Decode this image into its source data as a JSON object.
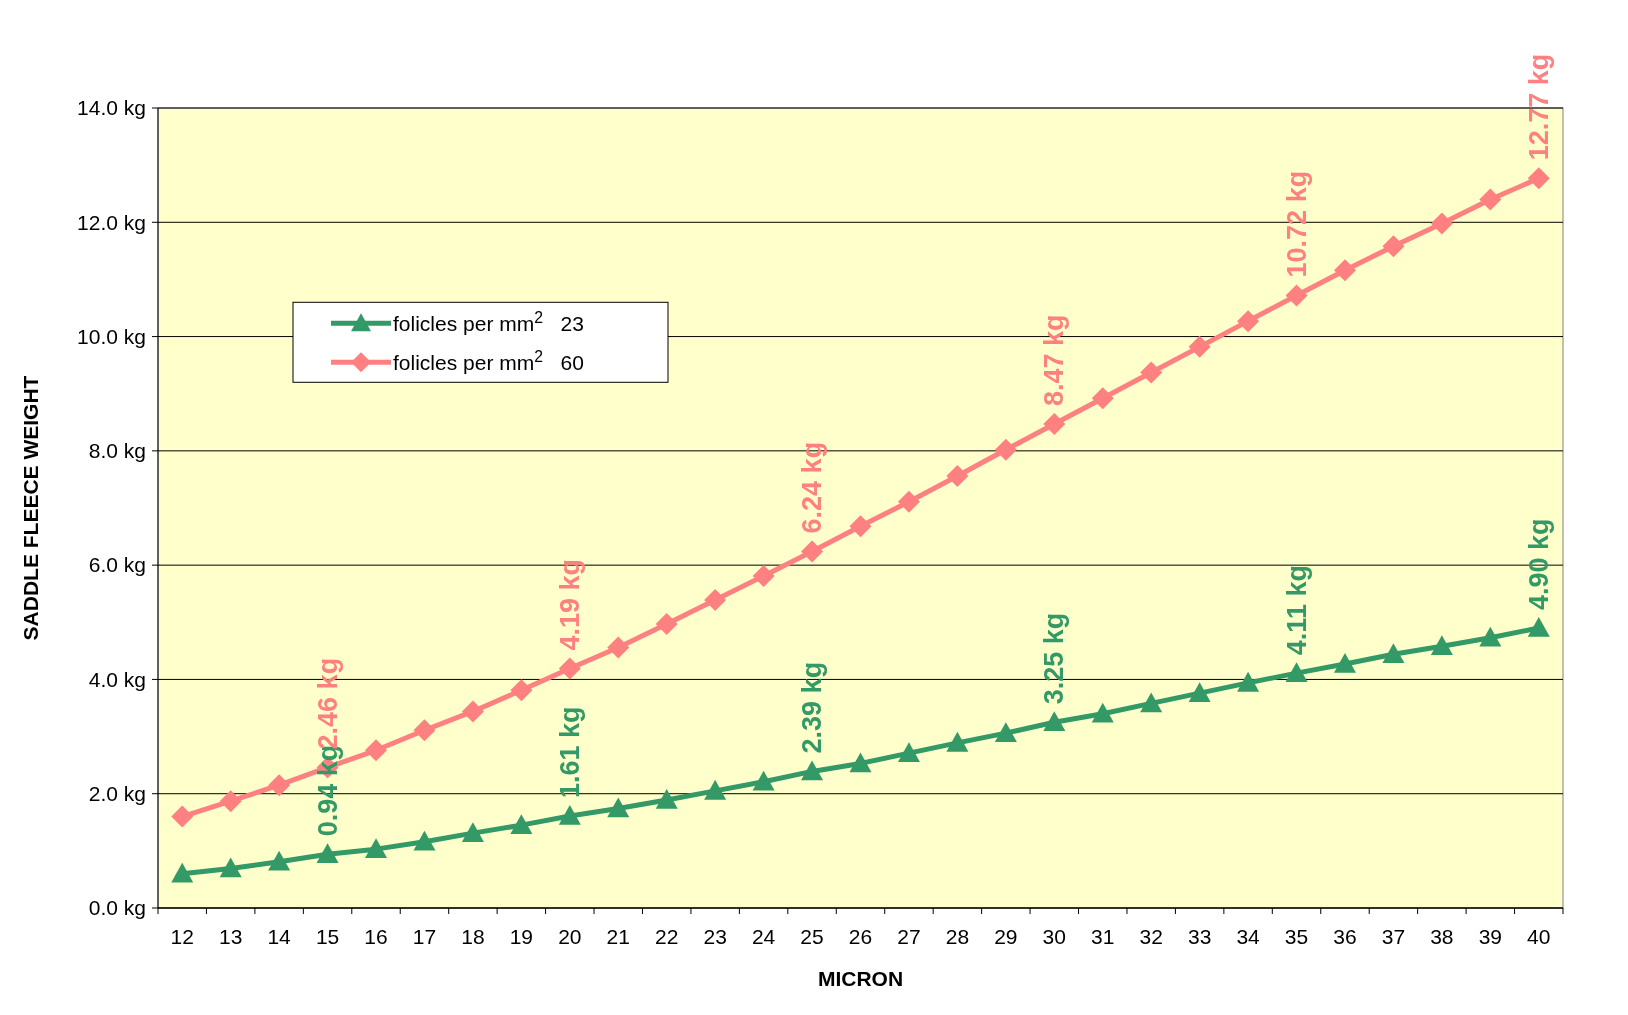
{
  "chart_data": {
    "type": "line",
    "xlabel": "MICRON",
    "ylabel": "SADDLE FLEECE WEIGHT",
    "categories": [
      "12",
      "13",
      "14",
      "15",
      "16",
      "17",
      "18",
      "19",
      "20",
      "21",
      "22",
      "23",
      "24",
      "25",
      "26",
      "27",
      "28",
      "29",
      "30",
      "31",
      "32",
      "33",
      "34",
      "35",
      "36",
      "37",
      "38",
      "39",
      "40"
    ],
    "ylim": [
      0,
      14
    ],
    "yticks": [
      {
        "value": 0,
        "label": "0.0 kg"
      },
      {
        "value": 2,
        "label": "2.0 kg"
      },
      {
        "value": 4,
        "label": "4.0 kg"
      },
      {
        "value": 6,
        "label": "6.0 kg"
      },
      {
        "value": 8,
        "label": "8.0 kg"
      },
      {
        "value": 10,
        "label": "10.0 kg"
      },
      {
        "value": 12,
        "label": "12.0 kg"
      },
      {
        "value": 14,
        "label": "14.0 kg"
      }
    ],
    "grid": "y",
    "legend": "top left",
    "series": [
      {
        "name": "folicles per mm$^{2}$   23",
        "color": "#339966",
        "marker": "triangle",
        "values": [
          0.6,
          0.69,
          0.81,
          0.94,
          1.03,
          1.16,
          1.31,
          1.45,
          1.61,
          1.74,
          1.89,
          2.05,
          2.21,
          2.39,
          2.53,
          2.71,
          2.89,
          3.06,
          3.25,
          3.4,
          3.58,
          3.76,
          3.94,
          4.11,
          4.27,
          4.44,
          4.58,
          4.73,
          4.9
        ],
        "value_labels": [
          null,
          null,
          null,
          "0.94 kg",
          null,
          null,
          null,
          null,
          "1.61 kg",
          null,
          null,
          null,
          null,
          "2.39 kg",
          null,
          null,
          null,
          null,
          "3.25 kg",
          null,
          null,
          null,
          null,
          "4.11 kg",
          null,
          null,
          null,
          null,
          "4.90 kg"
        ]
      },
      {
        "name": "folicles per mm$^{2}$   60",
        "color": "#ff8080",
        "marker": "diamond",
        "values": [
          1.6,
          1.87,
          2.15,
          2.46,
          2.76,
          3.11,
          3.44,
          3.81,
          4.19,
          4.56,
          4.97,
          5.39,
          5.81,
          6.24,
          6.68,
          7.11,
          7.56,
          8.02,
          8.47,
          8.92,
          9.37,
          9.82,
          10.27,
          10.72,
          11.16,
          11.58,
          11.98,
          12.4,
          12.77
        ],
        "value_labels": [
          null,
          null,
          null,
          "2.46 kg",
          null,
          null,
          null,
          null,
          "4.19 kg",
          null,
          null,
          null,
          null,
          "6.24 kg",
          null,
          null,
          null,
          null,
          "8.47 kg",
          null,
          null,
          null,
          null,
          "10.72 kg",
          null,
          null,
          null,
          null,
          "12.77 kg"
        ]
      }
    ]
  }
}
